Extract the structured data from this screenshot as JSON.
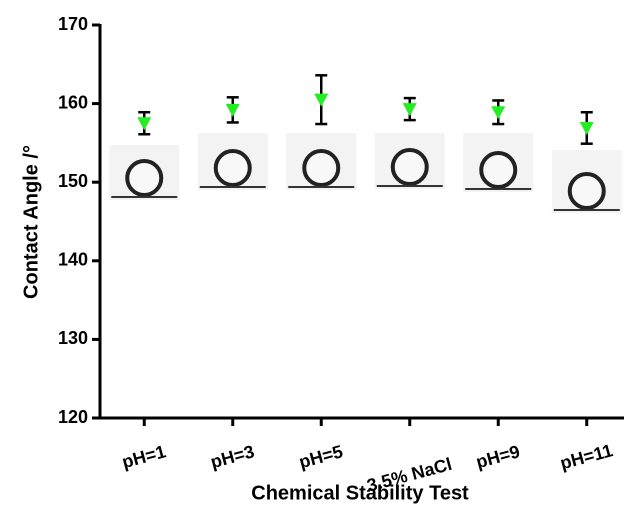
{
  "chart_data": {
    "type": "scatter",
    "x_label": "Chemical Stability Test",
    "y_label": "Contact Angle /°",
    "categories": [
      "pH=1",
      "pH=3",
      "pH=5",
      "3.5% NaCl",
      "pH=9",
      "pH=11"
    ],
    "values": [
      157.5,
      159.2,
      160.5,
      159.3,
      158.9,
      156.9
    ],
    "errors": [
      1.4,
      1.6,
      3.1,
      1.4,
      1.5,
      2.0
    ],
    "color": "#22ee22",
    "ylim": [
      120,
      170
    ],
    "yticks": [
      120,
      130,
      140,
      150,
      160,
      170
    ]
  }
}
